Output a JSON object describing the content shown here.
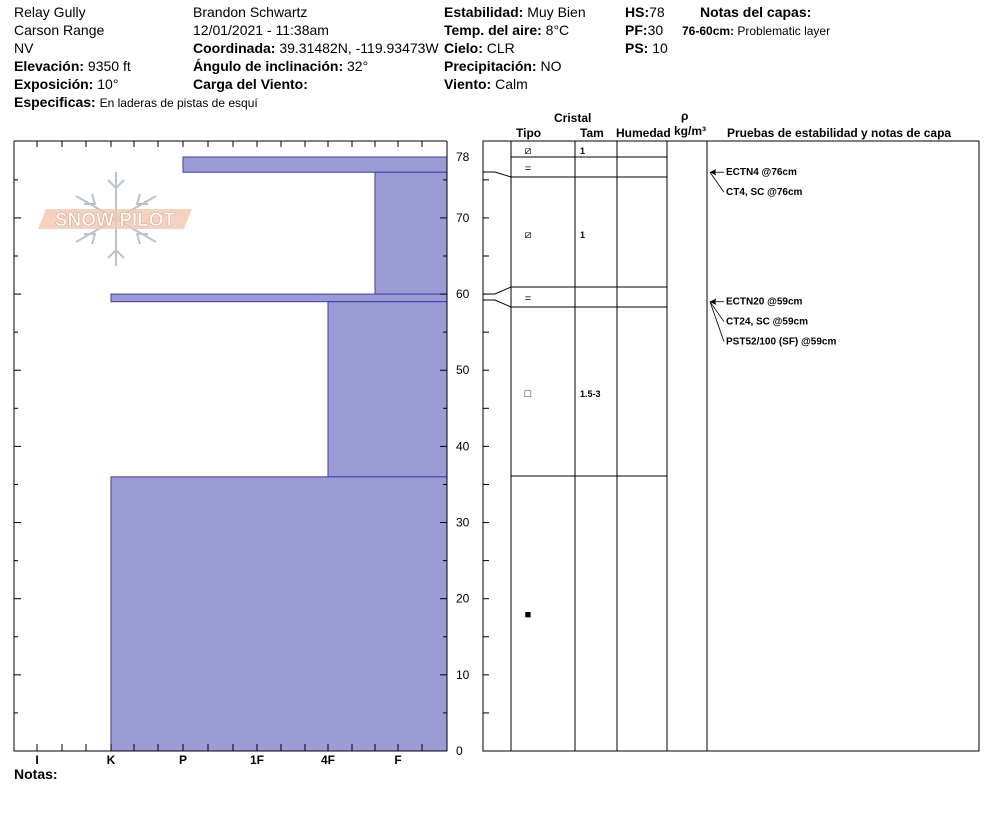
{
  "header": {
    "location": "Relay Gully",
    "range": "Carson Range",
    "state": "NV",
    "elevation_label": "Elevación:",
    "elevation": "9350 ft",
    "aspect_label": "Exposición:",
    "aspect": "10°",
    "specifics_label": "Especificas:",
    "specifics": "En laderas de pistas de esquí",
    "observer": "Brandon Schwartz",
    "datetime": "12/01/2021 - 11:38am",
    "coord_label": "Coordinada:",
    "coord": "39.31482N, -119.93473W",
    "slope_label": "Ángulo de inclinación:",
    "slope": "32°",
    "wind_load_label": "Carga del Viento:",
    "wind_load": "",
    "stability_label": "Estabilidad:",
    "stability": "Muy Bien",
    "air_temp_label": "Temp. del aire:",
    "air_temp": "8°C",
    "sky_label": "Cielo:",
    "sky": "CLR",
    "precip_label": "Precipitación:",
    "precip": "NO",
    "wind_label": "Viento:",
    "wind": "Calm",
    "hs_label": "HS:",
    "hs": "78",
    "pf_label": "PF:",
    "pf": "30",
    "ps_label": "PS:",
    "ps": "10",
    "layer_notes_title": "Notas del capas:",
    "layer_note_range": "76-60cm:",
    "layer_note_text": "Problematic layer"
  },
  "logo": {
    "text": "SNOW PILOT"
  },
  "table_headers": {
    "cristal": "Cristal",
    "tipo": "Tipo",
    "tam": "Tam",
    "humedad": "Humedad",
    "rho": "ρ",
    "density_unit": "kg/m³",
    "tests": "Pruebas de estabilidad y notas de capa"
  },
  "notes_label": "Notas:",
  "chart_data": {
    "type": "snow_profile",
    "y_range": [
      0,
      78
    ],
    "y_ticks": [
      0,
      10,
      20,
      30,
      40,
      50,
      60,
      70,
      78
    ],
    "hardness_scale": [
      "I",
      "K",
      "P",
      "1F",
      "4F",
      "F"
    ],
    "hardness_profile": [
      {
        "top": 78,
        "bottom": 76,
        "hardness": "P"
      },
      {
        "top": 76,
        "bottom": 60,
        "hardness": "4F-F"
      },
      {
        "top": 60,
        "bottom": 59,
        "hardness": "K"
      },
      {
        "top": 59,
        "bottom": 36,
        "hardness": "4F"
      },
      {
        "top": 36,
        "bottom": 0,
        "hardness": "K"
      }
    ],
    "layers": [
      {
        "top": 78,
        "bottom": 76,
        "grain": "⧄",
        "size": "1"
      },
      {
        "top": 76,
        "bottom": 60,
        "grain": "⧄",
        "size": "1"
      },
      {
        "top": 60,
        "bottom": 59,
        "grain": "=",
        "size": ""
      },
      {
        "top": 59,
        "bottom": 36,
        "grain": "□",
        "size": "1.5-3"
      },
      {
        "top": 36,
        "bottom": 0,
        "grain": "■",
        "size": ""
      }
    ],
    "boundary_marks": [
      {
        "depth": 76,
        "grain": "="
      }
    ],
    "tests": [
      {
        "depth": 76,
        "labels": [
          "ECTN4 @76cm",
          "CT4, SC @76cm"
        ]
      },
      {
        "depth": 59,
        "labels": [
          "ECTN20 @59cm",
          "CT24, SC @59cm",
          "PST52/100 (SF) @59cm"
        ]
      }
    ],
    "colors": {
      "fill": "#9b9bd6",
      "stroke": "#3c3caa",
      "grid": "#000000"
    }
  }
}
